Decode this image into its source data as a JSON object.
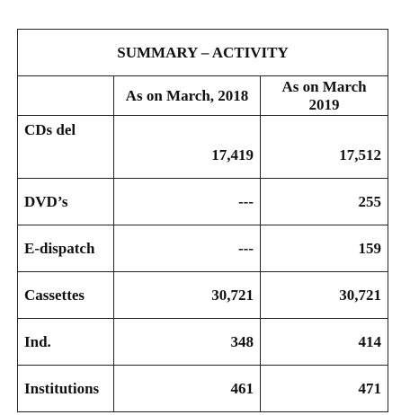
{
  "table": {
    "title": "SUMMARY – ACTIVITY",
    "columns": [
      "As on March, 2018",
      "As on March 2019"
    ],
    "rows": [
      [
        "CDs del",
        "17,419",
        "17,512"
      ],
      [
        "DVD’s",
        "---",
        "255"
      ],
      [
        "E-dispatch",
        "---",
        "159"
      ],
      [
        "Cassettes",
        "30,721",
        "30,721"
      ],
      [
        "Ind.",
        "348",
        "414"
      ],
      [
        "Institutions",
        "461",
        "471"
      ]
    ]
  }
}
